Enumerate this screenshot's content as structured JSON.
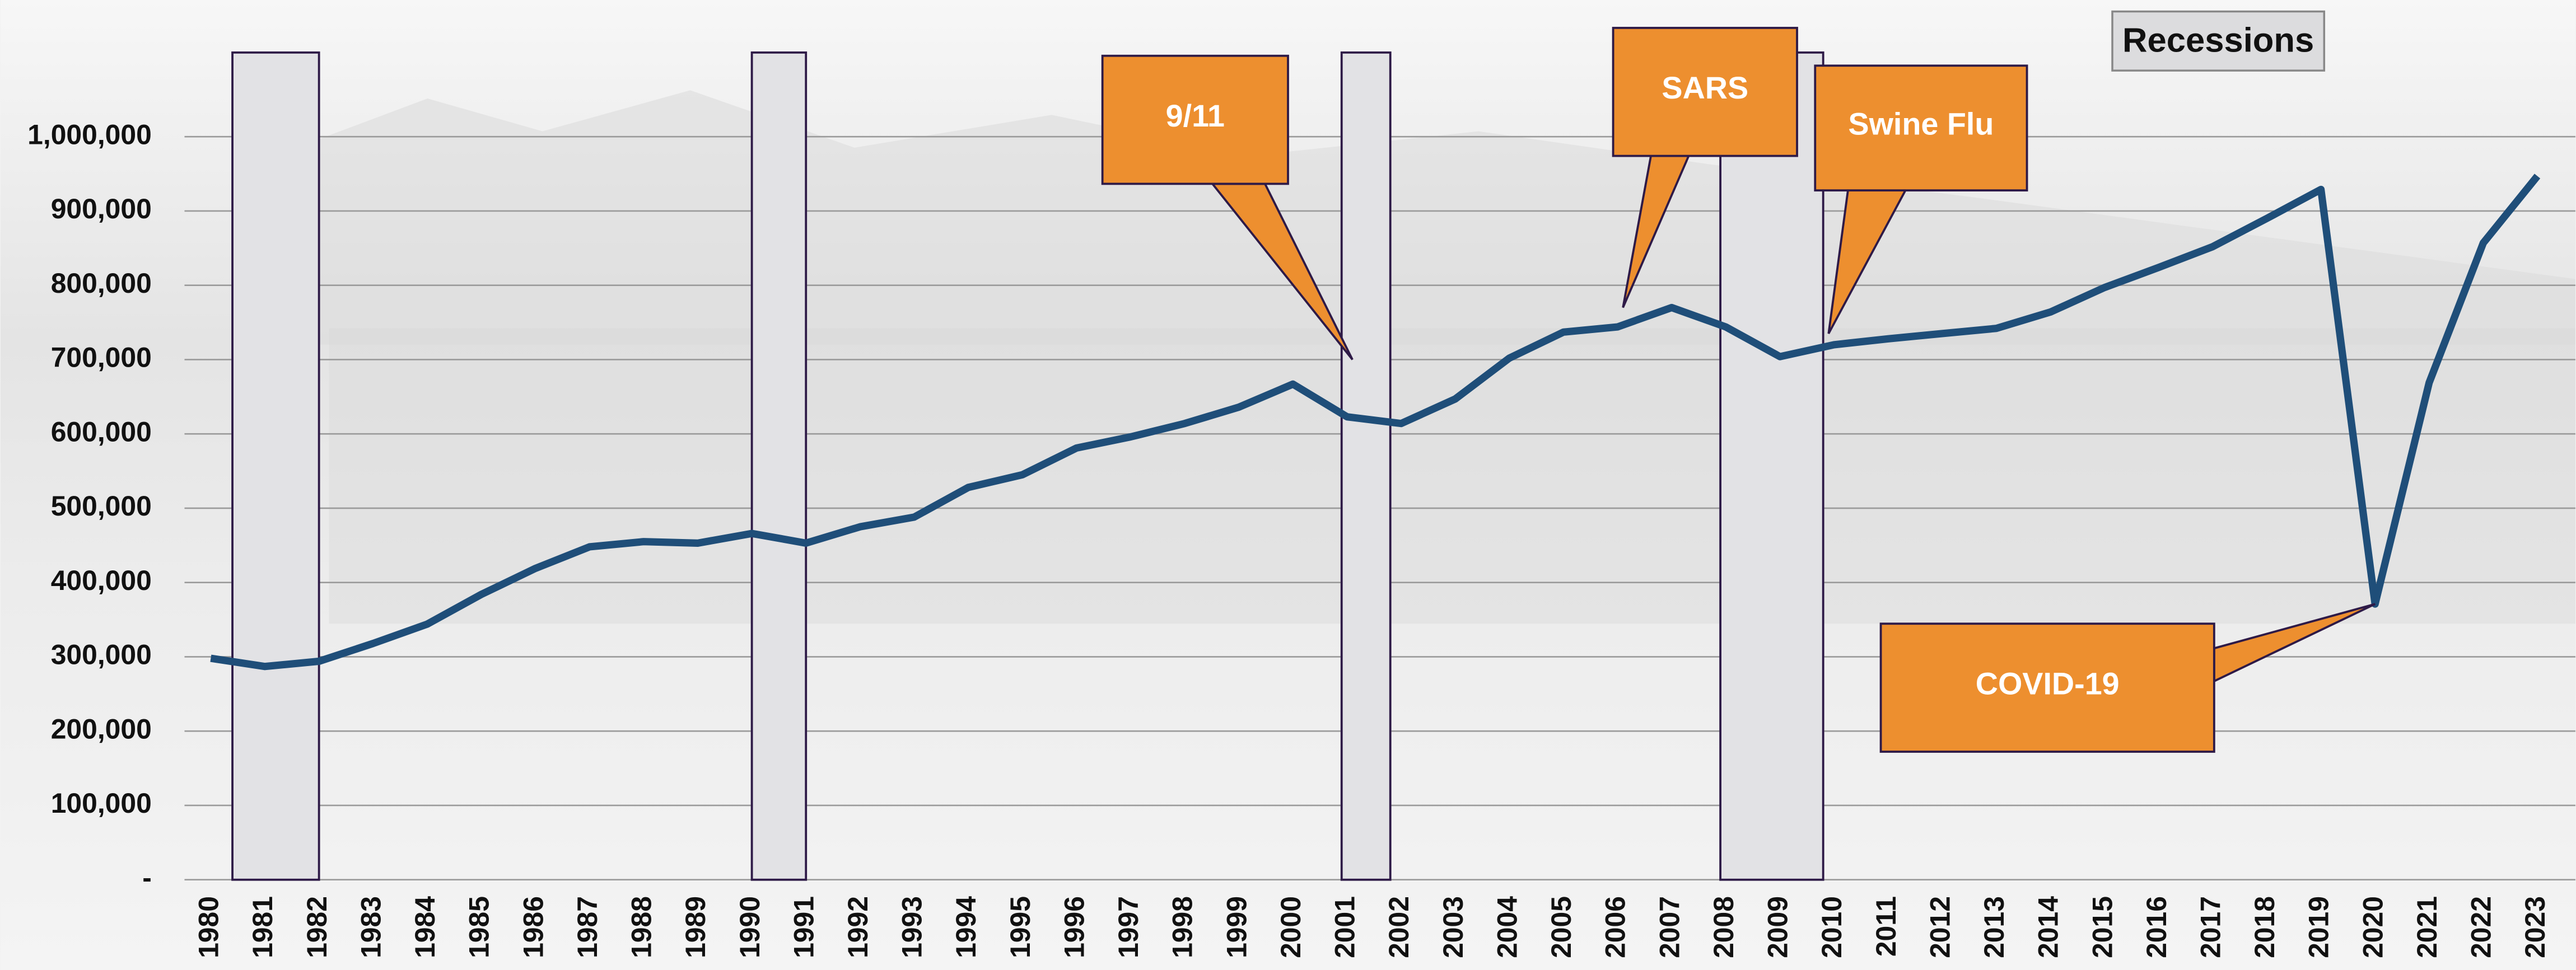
{
  "chart_data": {
    "type": "line",
    "categories": [
      "1980",
      "1981",
      "1982",
      "1983",
      "1984",
      "1985",
      "1986",
      "1987",
      "1988",
      "1989",
      "1990",
      "1991",
      "1992",
      "1993",
      "1994",
      "1995",
      "1996",
      "1997",
      "1998",
      "1999",
      "2000",
      "2001",
      "2002",
      "2003",
      "2004",
      "2005",
      "2006",
      "2007",
      "2008",
      "2009",
      "2010",
      "2011",
      "2012",
      "2013",
      "2014",
      "2015",
      "2016",
      "2017",
      "2018",
      "2019",
      "2020",
      "2021",
      "2022",
      "2023"
    ],
    "series": [
      {
        "color": "#1f4e79",
        "values": [
          298000,
          287000,
          294000,
          318000,
          344000,
          384000,
          419000,
          448000,
          455000,
          453000,
          466000,
          453000,
          475000,
          488000,
          528000,
          545000,
          581000,
          596000,
          614000,
          636000,
          667000,
          623000,
          614000,
          647000,
          702000,
          737000,
          744000,
          770000,
          744000,
          704000,
          720000,
          728000,
          735000,
          742000,
          764000,
          797000,
          824000,
          852000,
          890000,
          929000,
          371000,
          669000,
          857000,
          947000
        ]
      }
    ],
    "ylim": [
      0,
      1100000
    ],
    "yticks": [
      {
        "value": 0,
        "label": "-"
      },
      {
        "value": 100000,
        "label": "100,000"
      },
      {
        "value": 200000,
        "label": "200,000"
      },
      {
        "value": 300000,
        "label": "300,000"
      },
      {
        "value": 400000,
        "label": "400,000"
      },
      {
        "value": 500000,
        "label": "500,000"
      },
      {
        "value": 600000,
        "label": "600,000"
      },
      {
        "value": 700000,
        "label": "700,000"
      },
      {
        "value": 800000,
        "label": "800,000"
      },
      {
        "value": 900000,
        "label": "900,000"
      },
      {
        "value": 1000000,
        "label": "1,000,000"
      }
    ],
    "grid": true,
    "legend": "Recessions",
    "recession_color": "#e2e2e5",
    "recessions": [
      [
        1980.4,
        1982
      ],
      [
        1990,
        1991
      ],
      [
        2000.9,
        2001.8
      ],
      [
        2007.9,
        2009.8
      ]
    ],
    "callout_color": "#ed8f2f",
    "annotations": [
      {
        "text": "9/11",
        "x": 2001.1,
        "y": 700000
      },
      {
        "text": "SARS",
        "x": 2006.1,
        "y": 770000
      },
      {
        "text": "Swine Flu",
        "x": 2009.9,
        "y": 735000
      },
      {
        "text": "COVID-19",
        "x": 2020,
        "y": 371000
      }
    ]
  }
}
